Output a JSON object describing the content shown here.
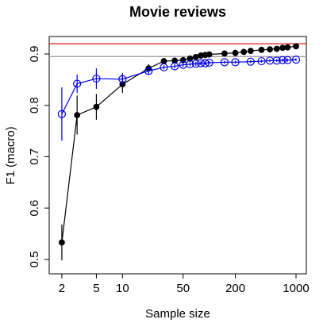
{
  "chart_data": {
    "type": "line",
    "title": "Movie reviews",
    "xlabel": "Sample size",
    "ylabel": "F1 (macro)",
    "xscale": "log",
    "xlim": [
      1.43,
      1315
    ],
    "ylim": [
      0.472,
      0.934
    ],
    "xticks": [
      2,
      5,
      10,
      50,
      200,
      1000
    ],
    "yticks": [
      0.5,
      0.6,
      0.7,
      0.8,
      0.9
    ],
    "hlines": [
      {
        "value": 0.92,
        "color": "#e00000"
      },
      {
        "value": 0.895,
        "color": "#999999"
      }
    ],
    "series": [
      {
        "color": "#000000",
        "marker": "filled",
        "x": [
          2,
          3,
          5,
          10,
          20,
          30,
          40,
          50,
          60,
          70,
          80,
          90,
          100,
          150,
          200,
          250,
          300,
          400,
          500,
          600,
          700,
          800,
          1000
        ],
        "values": [
          0.533,
          0.781,
          0.797,
          0.841,
          0.872,
          0.886,
          0.887,
          0.888,
          0.891,
          0.894,
          0.897,
          0.898,
          0.899,
          0.901,
          0.902,
          0.904,
          0.906,
          0.908,
          0.909,
          0.91,
          0.912,
          0.913,
          0.915
        ],
        "errors": [
          0.035,
          0.038,
          0.025,
          0.017,
          0.008,
          0.004,
          0.004,
          0.004,
          0.004,
          0.004,
          0.004,
          0.004,
          0.004,
          0.003,
          0.003,
          0.003,
          0.003,
          0.003,
          0.003,
          0.003,
          0.003,
          0.003,
          0.003
        ]
      },
      {
        "color": "#0000ee",
        "marker": "open",
        "x": [
          2,
          3,
          5,
          10,
          20,
          30,
          40,
          50,
          60,
          70,
          80,
          90,
          100,
          150,
          200,
          300,
          400,
          500,
          600,
          700,
          800,
          1000
        ],
        "values": [
          0.783,
          0.842,
          0.852,
          0.851,
          0.867,
          0.874,
          0.876,
          0.879,
          0.88,
          0.881,
          0.882,
          0.882,
          0.883,
          0.884,
          0.884,
          0.885,
          0.886,
          0.887,
          0.887,
          0.888,
          0.888,
          0.889
        ],
        "errors": [
          0.052,
          0.018,
          0.02,
          0.012,
          0.007,
          0.004,
          0.004,
          0.004,
          0.004,
          0.004,
          0.004,
          0.003,
          0.003,
          0.003,
          0.003,
          0.003,
          0.003,
          0.003,
          0.003,
          0.003,
          0.003,
          0.003
        ]
      }
    ]
  }
}
